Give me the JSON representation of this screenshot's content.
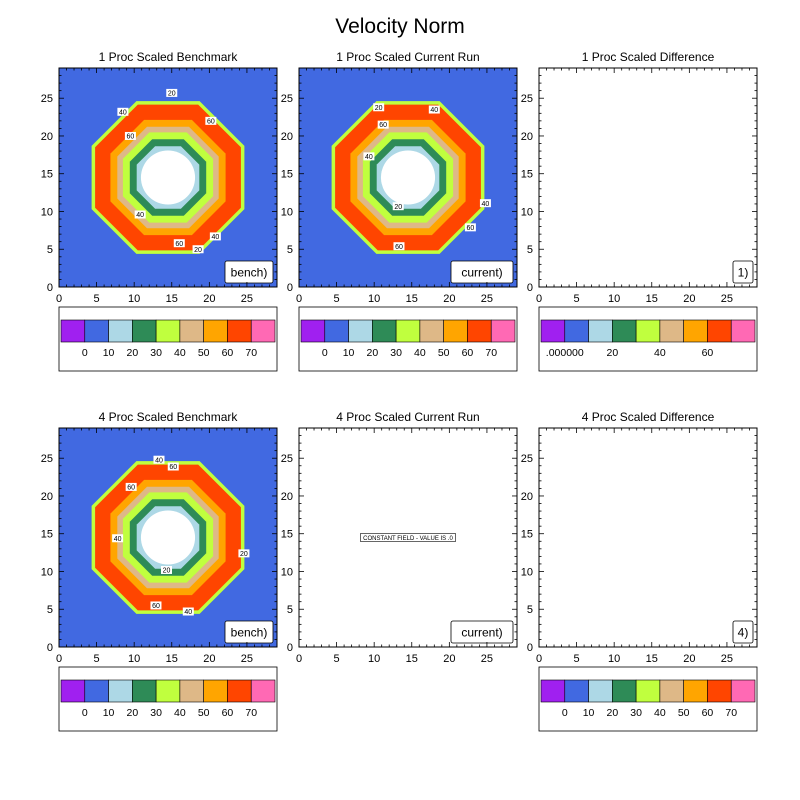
{
  "figure": {
    "title": "Velocity Norm"
  },
  "palette": [
    "#a020f0",
    "#4169e1",
    "#add8e6",
    "#2e8b57",
    "#c0ff3e",
    "#deb887",
    "#ffa500",
    "#ff4500",
    "#ff69b4"
  ],
  "chart_data": [
    {
      "type": "heatmap",
      "title": "1 Proc Scaled Benchmark",
      "tag": "bench)",
      "xlim": [
        0,
        29
      ],
      "ylim": [
        0,
        29
      ],
      "xticks": [
        0,
        5,
        10,
        15,
        20,
        25
      ],
      "yticks": [
        0,
        5,
        10,
        15,
        20,
        25
      ],
      "field": {
        "center": [
          14.5,
          14.5
        ],
        "levels": [
          0,
          10,
          20,
          30,
          40,
          50,
          60,
          70
        ],
        "radii": [
          4.5,
          5.5,
          6.5,
          7.3,
          8.3,
          10.5,
          11.0
        ]
      },
      "contour_labels": [
        {
          "text": "20",
          "x": 15,
          "y": 25.7
        },
        {
          "text": "40",
          "x": 8.5,
          "y": 23.2
        },
        {
          "text": "60",
          "x": 20.2,
          "y": 22.0
        },
        {
          "text": "60",
          "x": 9.5,
          "y": 20.0
        },
        {
          "text": "40",
          "x": 10.8,
          "y": 9.6
        },
        {
          "text": "60",
          "x": 16.0,
          "y": 5.8
        },
        {
          "text": "20",
          "x": 18.5,
          "y": 5.0
        },
        {
          "text": "40",
          "x": 20.8,
          "y": 6.7
        }
      ],
      "colorbar": {
        "labels": [
          "0",
          "10",
          "20",
          "30",
          "40",
          "50",
          "60",
          "70"
        ]
      }
    },
    {
      "type": "heatmap",
      "title": "1 Proc Scaled Current Run",
      "tag": "current)",
      "xlim": [
        0,
        29
      ],
      "ylim": [
        0,
        29
      ],
      "xticks": [
        0,
        5,
        10,
        15,
        20,
        25
      ],
      "yticks": [
        0,
        5,
        10,
        15,
        20,
        25
      ],
      "field": {
        "center": [
          14.5,
          14.5
        ],
        "levels": [
          0,
          10,
          20,
          30,
          40,
          50,
          60,
          70
        ],
        "radii": [
          4.5,
          5.5,
          6.5,
          7.3,
          8.3,
          10.5,
          11.0
        ]
      },
      "contour_labels": [
        {
          "text": "20",
          "x": 10.6,
          "y": 23.8
        },
        {
          "text": "40",
          "x": 18.0,
          "y": 23.5
        },
        {
          "text": "60",
          "x": 11.2,
          "y": 21.5
        },
        {
          "text": "40",
          "x": 9.3,
          "y": 17.3
        },
        {
          "text": "20",
          "x": 13.2,
          "y": 10.7
        },
        {
          "text": "60",
          "x": 13.3,
          "y": 5.4
        },
        {
          "text": "60",
          "x": 22.8,
          "y": 7.9
        },
        {
          "text": "40",
          "x": 24.8,
          "y": 11.1
        }
      ],
      "colorbar": {
        "labels": [
          "0",
          "10",
          "20",
          "30",
          "40",
          "50",
          "60",
          "70"
        ]
      }
    },
    {
      "type": "heatmap",
      "title": "1 Proc Scaled Difference",
      "tag": "1)",
      "xlim": [
        0,
        29
      ],
      "ylim": [
        0,
        29
      ],
      "xticks": [
        0,
        5,
        10,
        15,
        20,
        25
      ],
      "yticks": [
        0,
        5,
        10,
        15,
        20,
        25
      ],
      "field": null,
      "contour_labels": [],
      "colorbar": {
        "labels": [
          ".000000",
          "20",
          "40",
          "60"
        ],
        "label_boxes": [
          1,
          3,
          5,
          7
        ]
      }
    },
    {
      "type": "heatmap",
      "title": "4 Proc Scaled Benchmark",
      "tag": "bench)",
      "xlim": [
        0,
        29
      ],
      "ylim": [
        0,
        29
      ],
      "xticks": [
        0,
        5,
        10,
        15,
        20,
        25
      ],
      "yticks": [
        0,
        5,
        10,
        15,
        20,
        25
      ],
      "field": {
        "center": [
          14.5,
          14.5
        ],
        "levels": [
          0,
          10,
          20,
          30,
          40,
          50,
          60,
          70
        ],
        "radii": [
          4.5,
          5.5,
          6.5,
          7.3,
          8.3,
          10.5,
          11.0
        ]
      },
      "contour_labels": [
        {
          "text": "40",
          "x": 13.3,
          "y": 24.8
        },
        {
          "text": "60",
          "x": 15.2,
          "y": 23.9
        },
        {
          "text": "60",
          "x": 9.6,
          "y": 21.2
        },
        {
          "text": "40",
          "x": 7.8,
          "y": 14.4
        },
        {
          "text": "20",
          "x": 14.3,
          "y": 10.2
        },
        {
          "text": "20",
          "x": 24.6,
          "y": 12.4
        },
        {
          "text": "60",
          "x": 12.9,
          "y": 5.5
        },
        {
          "text": "40",
          "x": 17.2,
          "y": 4.7
        }
      ],
      "colorbar": {
        "labels": [
          "0",
          "10",
          "20",
          "30",
          "40",
          "50",
          "60",
          "70"
        ]
      }
    },
    {
      "type": "heatmap",
      "title": "4 Proc Scaled Current Run",
      "tag": "current)",
      "xlim": [
        0,
        29
      ],
      "ylim": [
        0,
        29
      ],
      "xticks": [
        0,
        5,
        10,
        15,
        20,
        25
      ],
      "yticks": [
        0,
        5,
        10,
        15,
        20,
        25
      ],
      "field": null,
      "contour_labels": [],
      "message": {
        "text": "CONSTANT FIELD - VALUE IS .0",
        "x": 14.5,
        "y": 14.5
      },
      "colorbar": null
    },
    {
      "type": "heatmap",
      "title": "4 Proc Scaled Difference",
      "tag": "4)",
      "xlim": [
        0,
        29
      ],
      "ylim": [
        0,
        29
      ],
      "xticks": [
        0,
        5,
        10,
        15,
        20,
        25
      ],
      "yticks": [
        0,
        5,
        10,
        15,
        20,
        25
      ],
      "field": null,
      "contour_labels": [],
      "colorbar": {
        "labels": [
          "0",
          "10",
          "20",
          "30",
          "40",
          "50",
          "60",
          "70"
        ]
      }
    }
  ]
}
